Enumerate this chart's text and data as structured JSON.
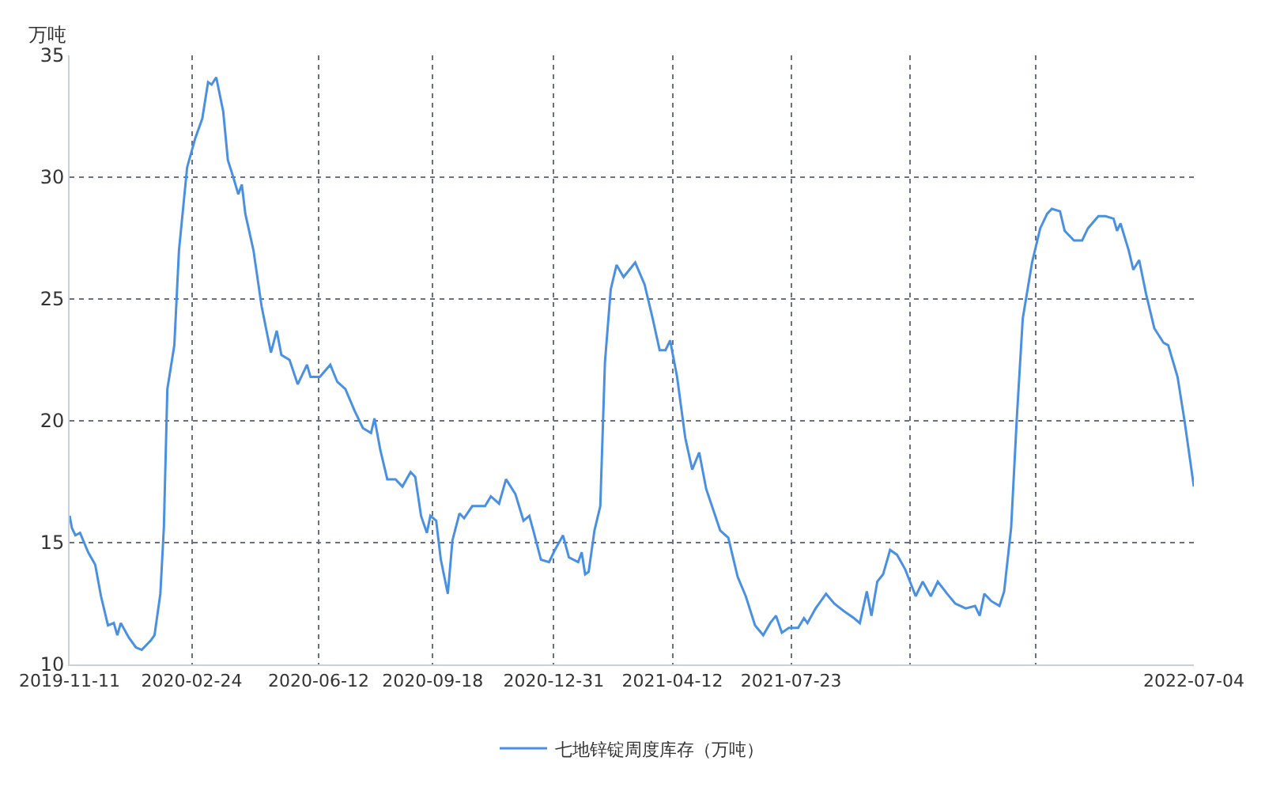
{
  "chart_data": {
    "type": "line",
    "ylabel": "万吨",
    "x": [
      "2019-11-11",
      "2019-11-13",
      "2019-11-16",
      "2019-11-20",
      "2019-11-27",
      "2019-12-03",
      "2019-12-08",
      "2019-12-14",
      "2019-12-19",
      "2019-12-22",
      "2019-12-25",
      "2020-01-01",
      "2020-01-07",
      "2020-01-12",
      "2020-01-20",
      "2020-01-23",
      "2020-01-28",
      "2020-01-31",
      "2020-02-03",
      "2020-02-09",
      "2020-02-13",
      "2020-02-20",
      "2020-02-27",
      "2020-03-04",
      "2020-03-09",
      "2020-03-12",
      "2020-03-16",
      "2020-03-22",
      "2020-03-26",
      "2020-03-30",
      "2020-04-04",
      "2020-04-07",
      "2020-04-10",
      "2020-04-17",
      "2020-04-24",
      "2020-05-02",
      "2020-05-07",
      "2020-05-11",
      "2020-05-18",
      "2020-05-25",
      "2020-06-02",
      "2020-06-05",
      "2020-06-13",
      "2020-06-22",
      "2020-06-28",
      "2020-07-05",
      "2020-07-13",
      "2020-07-20",
      "2020-07-27",
      "2020-07-30",
      "2020-08-04",
      "2020-08-10",
      "2020-08-17",
      "2020-08-23",
      "2020-08-30",
      "2020-09-03",
      "2020-09-08",
      "2020-09-13",
      "2020-09-16",
      "2020-09-21",
      "2020-09-25",
      "2020-10-01",
      "2020-10-05",
      "2020-10-11",
      "2020-10-15",
      "2020-10-22",
      "2020-11-02",
      "2020-11-07",
      "2020-11-14",
      "2020-11-20",
      "2020-11-28",
      "2020-12-05",
      "2020-12-10",
      "2020-12-14",
      "2020-12-20",
      "2020-12-27",
      "2021-01-01",
      "2021-01-08",
      "2021-01-13",
      "2021-01-21",
      "2021-01-24",
      "2021-01-27",
      "2021-01-30",
      "2021-02-04",
      "2021-02-09",
      "2021-02-13",
      "2021-02-18",
      "2021-02-23",
      "2021-03-01",
      "2021-03-06",
      "2021-03-11",
      "2021-03-19",
      "2021-03-26",
      "2021-04-01",
      "2021-04-06",
      "2021-04-10",
      "2021-04-16",
      "2021-04-23",
      "2021-04-29",
      "2021-05-05",
      "2021-05-11",
      "2021-05-23",
      "2021-05-30",
      "2021-06-07",
      "2021-06-14",
      "2021-06-22",
      "2021-06-29",
      "2021-07-05",
      "2021-07-10",
      "2021-07-15",
      "2021-07-21",
      "2021-07-29",
      "2021-08-03",
      "2021-08-06",
      "2021-08-13",
      "2021-08-22",
      "2021-08-29",
      "2021-09-06",
      "2021-09-15",
      "2021-09-20",
      "2021-09-26",
      "2021-09-30",
      "2021-10-05",
      "2021-10-10",
      "2021-10-16",
      "2021-10-22",
      "2021-10-29",
      "2021-11-07",
      "2021-11-13",
      "2021-11-20",
      "2021-11-26",
      "2021-12-04",
      "2021-12-11",
      "2021-12-20",
      "2021-12-28",
      "2022-01-01",
      "2022-01-05",
      "2022-01-11",
      "2022-01-18",
      "2022-01-22",
      "2022-01-28",
      "2022-02-02",
      "2022-02-07",
      "2022-02-15",
      "2022-02-22",
      "2022-02-28",
      "2022-03-04",
      "2022-03-11",
      "2022-03-15",
      "2022-03-23",
      "2022-03-30",
      "2022-04-04",
      "2022-04-13",
      "2022-04-19",
      "2022-04-26",
      "2022-04-29",
      "2022-05-02",
      "2022-05-09",
      "2022-05-13",
      "2022-05-18",
      "2022-05-24",
      "2022-05-31",
      "2022-06-08",
      "2022-06-12",
      "2022-06-20",
      "2022-06-26",
      "2022-07-04"
    ],
    "series": [
      {
        "name": "七地锌锭周度库存（万吨）",
        "color": "#4a90e2",
        "values": [
          16.1,
          15.6,
          15.3,
          15.4,
          14.6,
          14.1,
          12.8,
          11.6,
          11.7,
          11.2,
          11.7,
          11.1,
          10.7,
          10.6,
          11.0,
          11.2,
          12.9,
          15.6,
          21.3,
          23.1,
          27.0,
          30.4,
          31.6,
          32.4,
          33.9,
          33.8,
          34.1,
          32.7,
          30.7,
          30.1,
          29.3,
          29.7,
          28.5,
          27.0,
          24.7,
          22.8,
          23.7,
          22.7,
          22.5,
          21.5,
          22.3,
          21.8,
          21.8,
          22.3,
          21.6,
          21.3,
          20.4,
          19.7,
          19.5,
          20.1,
          18.8,
          17.6,
          17.6,
          17.3,
          17.9,
          17.7,
          16.1,
          15.4,
          16.1,
          15.9,
          14.3,
          12.9,
          15.1,
          16.2,
          16.0,
          16.5,
          16.5,
          16.9,
          16.6,
          17.6,
          17.0,
          15.9,
          16.1,
          15.4,
          14.3,
          14.2,
          14.7,
          15.3,
          14.4,
          14.2,
          14.6,
          13.7,
          13.8,
          15.5,
          16.5,
          22.4,
          25.4,
          26.4,
          25.9,
          26.2,
          26.5,
          25.6,
          24.2,
          22.9,
          22.9,
          23.3,
          21.8,
          19.3,
          18.0,
          18.7,
          17.2,
          15.5,
          15.2,
          13.6,
          12.8,
          11.6,
          11.2,
          11.7,
          12.0,
          11.3,
          11.5,
          11.5,
          11.9,
          11.7,
          12.3,
          12.9,
          12.5,
          12.2,
          11.9,
          11.7,
          13.0,
          12.0,
          13.4,
          13.7,
          14.7,
          14.5,
          13.9,
          12.8,
          13.4,
          12.8,
          13.4,
          12.9,
          12.5,
          12.3,
          12.4,
          12.0,
          12.9,
          12.6,
          12.4,
          13.0,
          15.6,
          20.2,
          24.2,
          26.5,
          27.9,
          28.5,
          28.7,
          28.6,
          27.8,
          27.4,
          27.4,
          27.9,
          28.4,
          28.4,
          28.3,
          27.8,
          28.1,
          27.0,
          26.2,
          26.6,
          25.2,
          23.8,
          23.2,
          23.1,
          21.8,
          20.0,
          17.3
        ]
      }
    ],
    "xlim": [
      "2019-11-11",
      "2022-07-04"
    ],
    "xticks": [
      {
        "value": "2019-11-11",
        "label": "2019-11-11"
      },
      {
        "value": "2020-02-24",
        "label": "2020-02-24"
      },
      {
        "value": "2020-06-12",
        "label": "2020-06-12"
      },
      {
        "value": "2020-09-18",
        "label": "2020-09-18"
      },
      {
        "value": "2020-12-31",
        "label": "2020-12-31"
      },
      {
        "value": "2021-04-12",
        "label": "2021-04-12"
      },
      {
        "value": "2021-07-23",
        "label": "2021-07-23"
      },
      {
        "value": "2021-11-02",
        "label": null
      },
      {
        "value": "2022-02-18",
        "label": null
      },
      {
        "value": "2022-07-04",
        "label": "2022-07-04"
      }
    ],
    "ylim": [
      10,
      35
    ],
    "yticks": [
      10,
      15,
      20,
      25,
      30,
      35
    ],
    "grid": true,
    "legend": "bottom",
    "line_style": "solid"
  }
}
